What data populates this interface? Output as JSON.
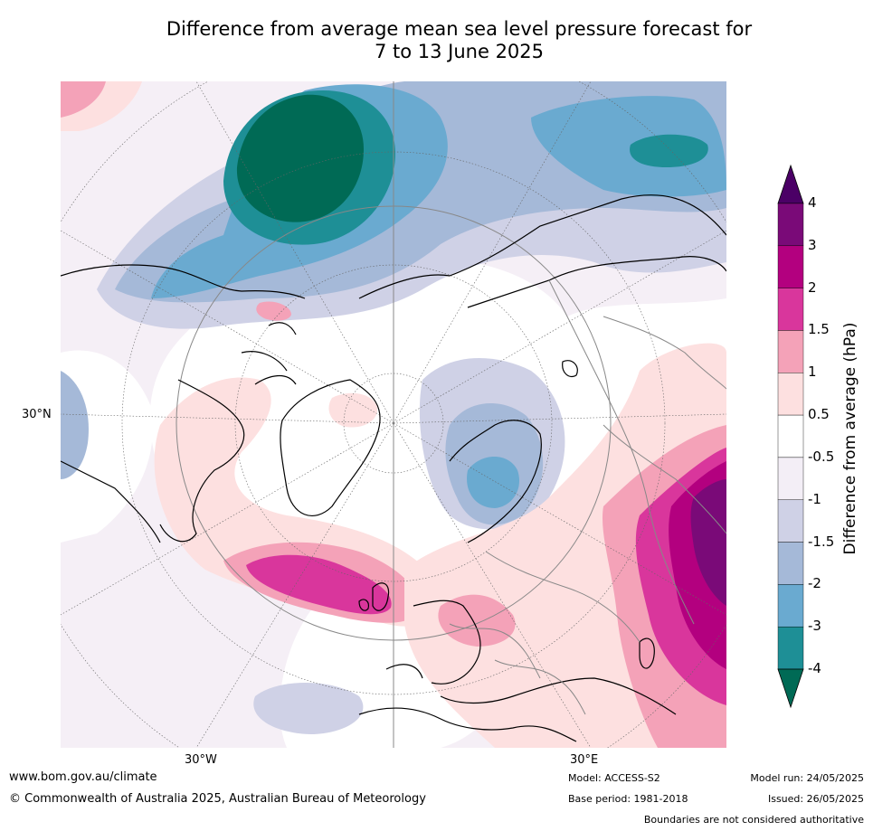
{
  "title": {
    "line1": "Difference from average mean sea level pressure forecast for",
    "line2": "7 to 13 June 2025"
  },
  "axes": {
    "lat_label": "30°N",
    "lon_labels": [
      "30°W",
      "30°E"
    ]
  },
  "legend": {
    "title": "Difference from average (hPa)",
    "ticks": [
      "4",
      "3",
      "2",
      "1.5",
      "1",
      "0.5",
      "-0.5",
      "-1",
      "-1.5",
      "-2",
      "-3",
      "-4"
    ],
    "colors": [
      "#4b0066",
      "#7a0a78",
      "#b3007f",
      "#d9369c",
      "#f4a2b8",
      "#fde0e0",
      "#ffffff",
      "#f3eef6",
      "#cfd1e6",
      "#a5b9d8",
      "#6aaad0",
      "#1e8f96",
      "#006a55"
    ]
  },
  "footer": {
    "website": "www.bom.gov.au/climate",
    "copyright": "© Commonwealth of Australia 2025, Australian Bureau of Meteorology",
    "model": "Model: ACCESS-S2",
    "base_period": "Base period: 1981-2018",
    "model_run": "Model run: 24/05/2025",
    "issued": "Issued: 26/05/2025",
    "disclaimer": "Boundaries are not considered authoritative"
  }
}
